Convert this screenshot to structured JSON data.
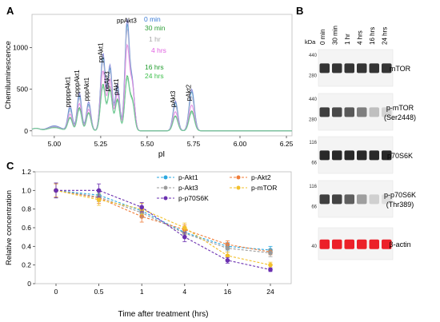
{
  "panels": {
    "a": "A",
    "b": "B",
    "c": "C"
  },
  "chart_data": [
    {
      "type": "line",
      "panel": "A",
      "xlabel": "pI",
      "ylabel": "Chemiluminescence",
      "xlim": [
        4.88,
        6.28
      ],
      "ylim": [
        -60,
        1400
      ],
      "xticks": [
        5.0,
        5.25,
        5.5,
        5.75,
        6.0,
        6.25
      ],
      "xtick_labels": [
        "5.00",
        "5.25",
        "5.50",
        "5.75",
        "6.00",
        "6.25"
      ],
      "yticks": [
        0,
        500,
        1000
      ],
      "ytick_labels": [
        "0",
        "500",
        "1000"
      ],
      "peak_labels": [
        {
          "text": "pppppAkt1",
          "x": 5.085,
          "y": 285
        },
        {
          "text": "ppppAkt1",
          "x": 5.135,
          "y": 410
        },
        {
          "text": "pppAkt1",
          "x": 5.185,
          "y": 360
        },
        {
          "text": "ppAkt1",
          "x": 5.262,
          "y": 820
        },
        {
          "text": "ppAkt3",
          "x": 5.295,
          "y": 475
        },
        {
          "text": "pAkt1",
          "x": 5.345,
          "y": 430
        },
        {
          "text": "ppAkt3",
          "x": 5.39,
          "y": 1300
        },
        {
          "text": "pAkt3",
          "x": 5.652,
          "y": 285
        },
        {
          "text": "pAkt2",
          "x": 5.735,
          "y": 360
        }
      ],
      "legend": [
        {
          "name": "0 min",
          "color": "#3a7bd5"
        },
        {
          "name": "30 min",
          "color": "#2e9e38"
        },
        {
          "name": "1 hr",
          "color": "#a9a9a9"
        },
        {
          "name": "4 hrs",
          "color": "#e060e0"
        },
        {
          "name": "16 hrs",
          "color": "#1e9b2a"
        },
        {
          "name": "24 hrs",
          "color": "#3cbf4a"
        }
      ],
      "series": [
        {
          "name": "0 min",
          "color": "#8080d8",
          "baseline": 60,
          "peaks": [
            [
              5.085,
              300,
              0.012
            ],
            [
              5.135,
              460,
              0.012
            ],
            [
              5.185,
              350,
              0.012
            ],
            [
              5.262,
              930,
              0.013
            ],
            [
              5.3,
              780,
              0.012
            ],
            [
              5.34,
              560,
              0.012
            ],
            [
              5.392,
              1310,
              0.012
            ],
            [
              5.42,
              560,
              0.012
            ],
            [
              5.652,
              360,
              0.013
            ],
            [
              5.74,
              500,
              0.014
            ]
          ]
        },
        {
          "name": "30 min",
          "color": "#5aa0c8",
          "baseline": 55,
          "peaks": [
            [
              5.085,
              270,
              0.012
            ],
            [
              5.135,
              420,
              0.012
            ],
            [
              5.185,
              320,
              0.012
            ],
            [
              5.262,
              880,
              0.013
            ],
            [
              5.3,
              740,
              0.012
            ],
            [
              5.34,
              520,
              0.012
            ],
            [
              5.392,
              1250,
              0.012
            ],
            [
              5.42,
              540,
              0.012
            ],
            [
              5.652,
              340,
              0.013
            ],
            [
              5.74,
              470,
              0.014
            ]
          ]
        },
        {
          "name": "1 hr",
          "color": "#b8b8d8",
          "baseline": 50,
          "peaks": [
            [
              5.085,
              240,
              0.012
            ],
            [
              5.135,
              390,
              0.012
            ],
            [
              5.185,
              300,
              0.012
            ],
            [
              5.262,
              830,
              0.013
            ],
            [
              5.3,
              700,
              0.012
            ],
            [
              5.34,
              500,
              0.012
            ],
            [
              5.392,
              1190,
              0.012
            ],
            [
              5.42,
              520,
              0.012
            ],
            [
              5.652,
              300,
              0.013
            ],
            [
              5.74,
              410,
              0.014
            ]
          ]
        },
        {
          "name": "4 hrs",
          "color": "#e080e0",
          "baseline": 45,
          "peaks": [
            [
              5.085,
              200,
              0.012
            ],
            [
              5.135,
              330,
              0.012
            ],
            [
              5.185,
              260,
              0.012
            ],
            [
              5.262,
              720,
              0.013
            ],
            [
              5.3,
              610,
              0.012
            ],
            [
              5.34,
              450,
              0.012
            ],
            [
              5.392,
              1000,
              0.012
            ],
            [
              5.42,
              540,
              0.012
            ],
            [
              5.652,
              230,
              0.013
            ],
            [
              5.74,
              310,
              0.014
            ]
          ]
        },
        {
          "name": "16 hrs",
          "color": "#3cae5a",
          "baseline": 40,
          "peaks": [
            [
              5.085,
              160,
              0.012
            ],
            [
              5.135,
              280,
              0.012
            ],
            [
              5.185,
              220,
              0.012
            ],
            [
              5.262,
              560,
              0.013
            ],
            [
              5.3,
              500,
              0.012
            ],
            [
              5.34,
              380,
              0.012
            ],
            [
              5.392,
              640,
              0.012
            ],
            [
              5.42,
              350,
              0.012
            ],
            [
              5.652,
              180,
              0.013
            ],
            [
              5.74,
              240,
              0.014
            ]
          ]
        },
        {
          "name": "24 hrs",
          "color": "#7ad0a0",
          "baseline": 38,
          "peaks": [
            [
              5.085,
              150,
              0.012
            ],
            [
              5.135,
              260,
              0.012
            ],
            [
              5.185,
              210,
              0.012
            ],
            [
              5.262,
              530,
              0.013
            ],
            [
              5.3,
              480,
              0.012
            ],
            [
              5.34,
              360,
              0.012
            ],
            [
              5.392,
              610,
              0.012
            ],
            [
              5.42,
              330,
              0.012
            ],
            [
              5.652,
              170,
              0.013
            ],
            [
              5.74,
              220,
              0.014
            ]
          ]
        }
      ]
    },
    {
      "type": "line",
      "panel": "C",
      "xlabel": "Time after treatment (hrs)",
      "ylabel": "Relative concentration",
      "categories": [
        "0",
        "0.5",
        "1",
        "4",
        "16",
        "24"
      ],
      "ylim": [
        0,
        1.2
      ],
      "yticks": [
        0,
        0.2,
        0.4,
        0.6,
        0.8,
        1.0,
        1.2
      ],
      "ytick_labels": [
        "0",
        "0.2",
        "0.4",
        "0.6",
        "0.8",
        "1.0",
        "1.2"
      ],
      "legend_position": "top-right",
      "series": [
        {
          "name": "p-Akt1",
          "color": "#2aa8e0",
          "marker": "circle",
          "values": [
            1.0,
            0.95,
            0.78,
            0.55,
            0.4,
            0.36
          ],
          "errors": [
            0.08,
            0.05,
            0.05,
            0.05,
            0.04,
            0.04
          ]
        },
        {
          "name": "p-Akt2",
          "color": "#f07d3a",
          "marker": "circle",
          "values": [
            1.0,
            0.92,
            0.72,
            0.58,
            0.42,
            0.34
          ],
          "errors": [
            0.07,
            0.06,
            0.06,
            0.05,
            0.04,
            0.03
          ]
        },
        {
          "name": "p-Akt3",
          "color": "#9a9a9a",
          "marker": "circle",
          "values": [
            1.0,
            0.93,
            0.76,
            0.54,
            0.38,
            0.33
          ],
          "errors": [
            0.08,
            0.05,
            0.05,
            0.05,
            0.04,
            0.04
          ]
        },
        {
          "name": "p-mTOR",
          "color": "#f2c02c",
          "marker": "circle",
          "values": [
            1.0,
            0.9,
            0.8,
            0.6,
            0.3,
            0.2
          ],
          "errors": [
            0.07,
            0.06,
            0.06,
            0.05,
            0.04,
            0.03
          ]
        },
        {
          "name": "p-p70S6K",
          "color": "#6a2fb0",
          "marker": "circle",
          "values": [
            1.0,
            1.0,
            0.82,
            0.5,
            0.25,
            0.15
          ],
          "errors": [
            0.08,
            0.07,
            0.05,
            0.05,
            0.03,
            0.02
          ]
        }
      ]
    }
  ],
  "blot": {
    "kda_label": "kDa",
    "lanes": [
      "0 min",
      "30 min",
      "1 hr",
      "4 hrs",
      "16 hrs",
      "24 hrs"
    ],
    "rows": [
      {
        "label_lines": [
          "mTOR"
        ],
        "markers": [
          "440",
          "280"
        ],
        "intensities": [
          0.95,
          0.95,
          0.95,
          0.95,
          0.95,
          0.95
        ],
        "color": "dark"
      },
      {
        "label_lines": [
          "p-mTOR",
          "(Ser2448)"
        ],
        "markers": [
          "440",
          "280"
        ],
        "intensities": [
          0.9,
          0.85,
          0.78,
          0.6,
          0.3,
          0.2
        ],
        "color": "dark"
      },
      {
        "label_lines": [
          "p70S6K"
        ],
        "markers": [
          "116",
          "66"
        ],
        "intensities": [
          1.0,
          1.0,
          1.0,
          1.0,
          1.0,
          1.0
        ],
        "color": "dark"
      },
      {
        "label_lines": [
          "p-p70S6K",
          "(Thr389)"
        ],
        "markers": [
          "116",
          "66"
        ],
        "intensities": [
          0.9,
          0.88,
          0.75,
          0.45,
          0.22,
          0.15
        ],
        "color": "dark"
      },
      {
        "label_lines": [
          "β-actin"
        ],
        "markers": [
          "40"
        ],
        "intensities": [
          1.0,
          1.0,
          1.0,
          1.0,
          1.0,
          1.0
        ],
        "color": "red"
      }
    ]
  }
}
